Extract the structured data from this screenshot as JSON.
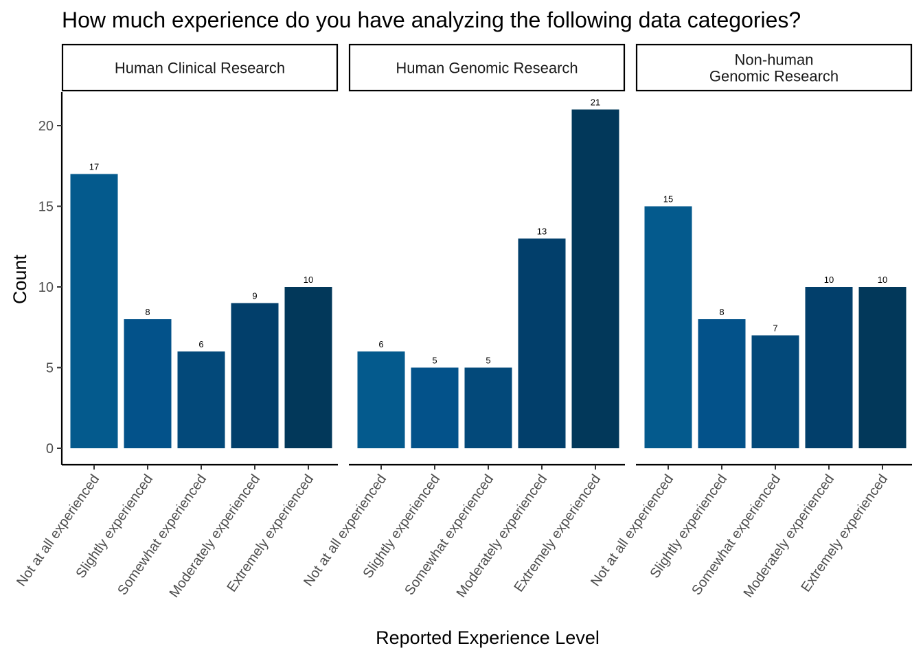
{
  "chart_data": {
    "type": "bar",
    "title": "How much experience do you have analyzing the following data categories?",
    "xlabel": "Reported Experience Level",
    "ylabel": "Count",
    "ylim": [
      0,
      22
    ],
    "yticks": [
      0,
      5,
      10,
      15,
      20
    ],
    "grid": false,
    "legend": "none",
    "categories": [
      "Not at all experienced",
      "Slightly experienced",
      "Somewhat experienced",
      "Moderately experienced",
      "Extremely experienced"
    ],
    "category_colors": [
      "#045a8d",
      "#03528a",
      "#03497a",
      "#023f6b",
      "#02385a"
    ],
    "panels": [
      {
        "name": "Human Clinical Research",
        "strip_lines": [
          "Human Clinical Research"
        ],
        "values": [
          17,
          8,
          6,
          9,
          10
        ]
      },
      {
        "name": "Human Genomic Research",
        "strip_lines": [
          "Human Genomic Research"
        ],
        "values": [
          6,
          5,
          5,
          13,
          21
        ]
      },
      {
        "name": "Non-human Genomic Research",
        "strip_lines": [
          "Non-human",
          "Genomic Research"
        ],
        "values": [
          15,
          8,
          7,
          10,
          10
        ]
      }
    ]
  }
}
